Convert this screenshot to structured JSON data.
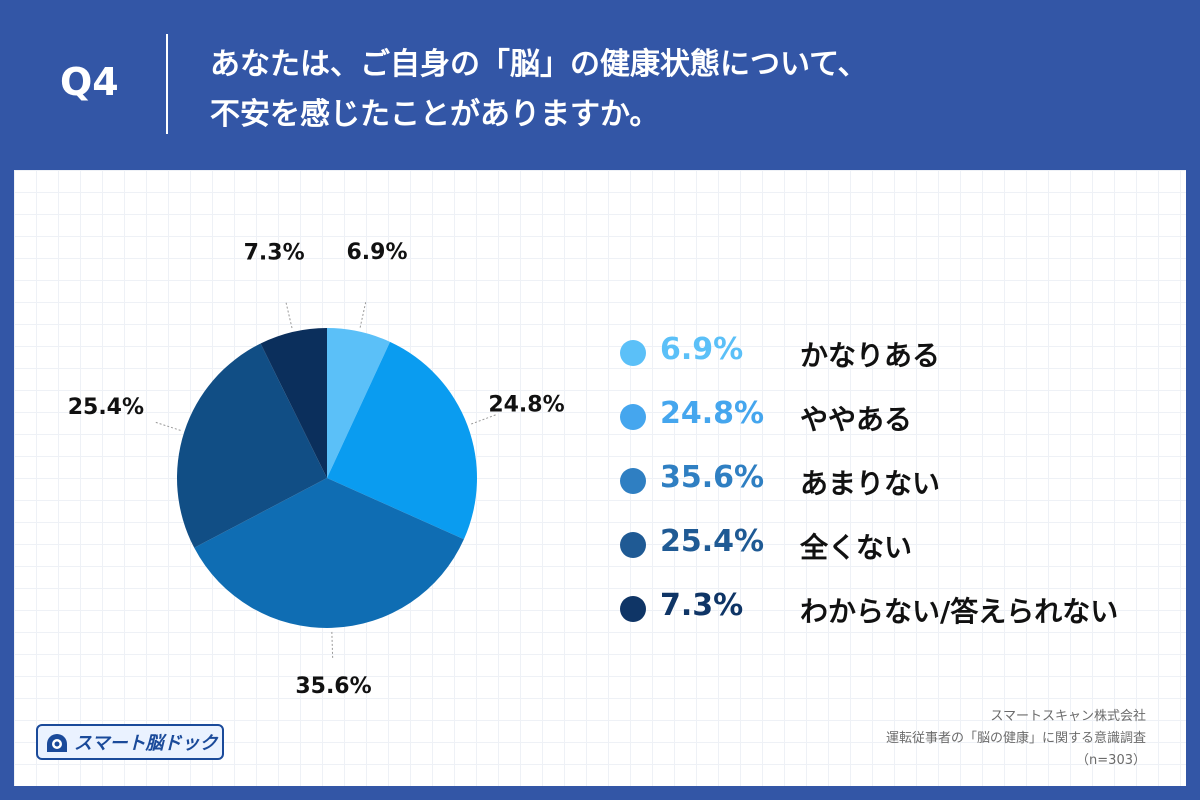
{
  "header": {
    "q_number": "Q4",
    "question_line1": "あなたは、ご自身の「脳」の健康状態について、",
    "question_line2": "不安を感じたことがありますか。"
  },
  "chart_data": {
    "type": "pie",
    "categories": [
      "かなりある",
      "ややある",
      "あまりない",
      "全くない",
      "わからない/答えられない"
    ],
    "values": [
      6.9,
      24.8,
      35.6,
      25.4,
      7.3
    ],
    "value_labels": [
      "6.9%",
      "24.8%",
      "35.6%",
      "25.4%",
      "7.3%"
    ],
    "colors": [
      "#5bc0f8",
      "#0a9cf0",
      "#0f6db3",
      "#114e85",
      "#0b2f5c"
    ],
    "legend_colors": [
      "#5bc0f8",
      "#45a6ee",
      "#2f7fc2",
      "#1f5a94",
      "#0f3566"
    ],
    "legend_placement": "right"
  },
  "legend": [
    {
      "pct": "6.9%",
      "label": "かなりある",
      "color": "#5bc0f8",
      "text_color": "#5bc0f8"
    },
    {
      "pct": "24.8%",
      "label": "ややある",
      "color": "#45a6ee",
      "text_color": "#45a6ee"
    },
    {
      "pct": "35.6%",
      "label": "あまりない",
      "color": "#2f7fc2",
      "text_color": "#2f7fc2"
    },
    {
      "pct": "25.4%",
      "label": "全くない",
      "color": "#1f5a94",
      "text_color": "#1f5a94"
    },
    {
      "pct": "7.3%",
      "label": "わからない/答えられない",
      "color": "#0f3566",
      "text_color": "#0f3566"
    }
  ],
  "logo": {
    "text": "スマート脳ドック",
    "icon": "brain-dock-icon"
  },
  "source": {
    "line1": "スマートスキャン株式会社",
    "line2": "運転従事者の「脳の健康」に関する意識調査",
    "line3": "（n=303）"
  }
}
